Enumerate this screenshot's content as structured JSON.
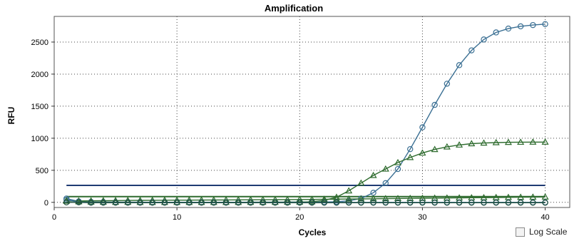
{
  "chart_data": {
    "type": "line",
    "title": "Amplification",
    "xlabel": "Cycles",
    "ylabel": "RFU",
    "xlim": [
      0,
      42
    ],
    "ylim": [
      -80,
      2900
    ],
    "x_ticks": [
      0,
      10,
      20,
      30,
      40
    ],
    "y_ticks": [
      0,
      500,
      1000,
      1500,
      2000,
      2500
    ],
    "grid": true,
    "threshold_lines": [
      {
        "y": 265,
        "color": "#1f3b73"
      },
      {
        "y": 90,
        "color": "#2e6b2e"
      }
    ],
    "series": [
      {
        "marker": "circle",
        "color": "#3a6f93",
        "x": [
          1,
          2,
          3,
          4,
          5,
          6,
          7,
          8,
          9,
          10,
          11,
          12,
          13,
          14,
          15,
          16,
          17,
          18,
          19,
          20,
          21,
          22,
          23,
          24,
          25,
          26,
          27,
          28,
          29,
          30,
          31,
          32,
          33,
          34,
          35,
          36,
          37,
          38,
          39,
          40
        ],
        "y": [
          60,
          15,
          8,
          5,
          3,
          2,
          2,
          1,
          1,
          1,
          1,
          1,
          1,
          1,
          1,
          2,
          2,
          2,
          3,
          3,
          4,
          6,
          10,
          25,
          60,
          150,
          300,
          520,
          830,
          1170,
          1520,
          1850,
          2140,
          2370,
          2540,
          2650,
          2710,
          2745,
          2765,
          2780
        ]
      },
      {
        "marker": "triangle",
        "color": "#2e6b2e",
        "x": [
          1,
          2,
          3,
          4,
          5,
          6,
          7,
          8,
          9,
          10,
          11,
          12,
          13,
          14,
          15,
          16,
          17,
          18,
          19,
          20,
          21,
          22,
          23,
          24,
          25,
          26,
          27,
          28,
          29,
          30,
          31,
          32,
          33,
          34,
          35,
          36,
          37,
          38,
          39,
          40
        ],
        "y": [
          30,
          10,
          5,
          3,
          2,
          2,
          1,
          1,
          1,
          1,
          1,
          1,
          1,
          1,
          1,
          2,
          2,
          2,
          3,
          5,
          10,
          30,
          80,
          180,
          300,
          420,
          520,
          620,
          700,
          770,
          825,
          865,
          895,
          915,
          925,
          932,
          936,
          938,
          940,
          940
        ]
      },
      {
        "marker": "triangle",
        "color": "#2e6b2e",
        "x": [
          1,
          2,
          3,
          4,
          5,
          6,
          7,
          8,
          9,
          10,
          11,
          12,
          13,
          14,
          15,
          16,
          17,
          18,
          19,
          20,
          21,
          22,
          23,
          24,
          25,
          26,
          27,
          28,
          29,
          30,
          31,
          32,
          33,
          34,
          35,
          36,
          37,
          38,
          39,
          40
        ],
        "y": [
          20,
          22,
          24,
          26,
          28,
          30,
          31,
          32,
          33,
          34,
          35,
          36,
          37,
          38,
          39,
          40,
          41,
          42,
          43,
          45,
          46,
          48,
          50,
          52,
          54,
          56,
          58,
          60,
          62,
          64,
          66,
          68,
          70,
          72,
          74,
          76,
          78,
          80,
          82,
          84
        ]
      },
      {
        "marker": "circle",
        "color": "#3a6f93",
        "x": [
          1,
          2,
          3,
          4,
          5,
          6,
          7,
          8,
          9,
          10,
          11,
          12,
          13,
          14,
          15,
          16,
          17,
          18,
          19,
          20,
          21,
          22,
          23,
          24,
          25,
          26,
          27,
          28,
          29,
          30,
          31,
          32,
          33,
          34,
          35,
          36,
          37,
          38,
          39,
          40
        ],
        "y": [
          40,
          5,
          0,
          0,
          0,
          0,
          0,
          0,
          0,
          0,
          0,
          0,
          0,
          0,
          0,
          0,
          0,
          0,
          0,
          0,
          0,
          0,
          0,
          0,
          0,
          0,
          0,
          0,
          0,
          0,
          0,
          0,
          0,
          0,
          0,
          0,
          0,
          0,
          0,
          0
        ]
      },
      {
        "marker": "circle",
        "color": "#1f4e3d",
        "x": [
          1,
          2,
          3,
          4,
          5,
          6,
          7,
          8,
          9,
          10,
          11,
          12,
          13,
          14,
          15,
          16,
          17,
          18,
          19,
          20,
          21,
          22,
          23,
          24,
          25,
          26,
          27,
          28,
          29,
          30,
          31,
          32,
          33,
          34,
          35,
          36,
          37,
          38,
          39,
          40
        ],
        "y": [
          0,
          0,
          -5,
          -5,
          -5,
          -5,
          -5,
          -5,
          -5,
          -5,
          -5,
          -5,
          -5,
          -5,
          -5,
          -5,
          -5,
          -5,
          -5,
          -5,
          -5,
          -5,
          -5,
          -5,
          -5,
          -5,
          -5,
          -5,
          -5,
          -5,
          -5,
          -5,
          -5,
          -5,
          -5,
          -5,
          -5,
          -5,
          -5,
          -5
        ]
      }
    ]
  },
  "controls": {
    "log_scale_label": "Log Scale",
    "log_scale_checked": false
  }
}
